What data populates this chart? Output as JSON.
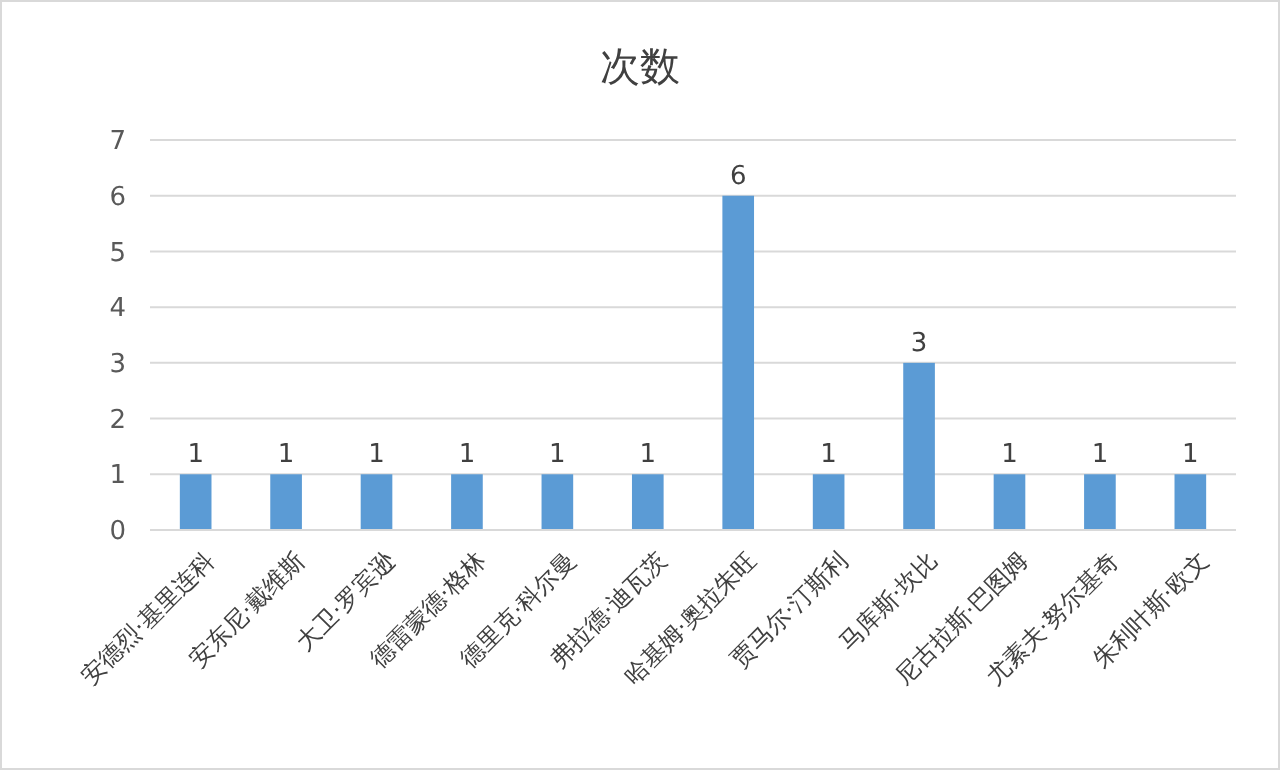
{
  "chart_data": {
    "type": "bar",
    "title": "次数",
    "categories": [
      "安德烈·基里连科",
      "安东尼·戴维斯",
      "大卫·罗宾逊",
      "德雷蒙德·格林",
      "德里克·科尔曼",
      "弗拉德·迪瓦茨",
      "哈基姆·奥拉朱旺",
      "贾马尔·汀斯利",
      "马库斯·坎比",
      "尼古拉斯·巴图姆",
      "尤素夫·努尔基奇",
      "朱利叶斯·欧文"
    ],
    "values": [
      1,
      1,
      1,
      1,
      1,
      1,
      6,
      1,
      3,
      1,
      1,
      1
    ],
    "color": "#5b9bd5",
    "ylim": [
      0,
      7
    ],
    "yticks": [
      0,
      1,
      2,
      3,
      4,
      5,
      6,
      7
    ],
    "grid": "y",
    "data_labels": true
  }
}
